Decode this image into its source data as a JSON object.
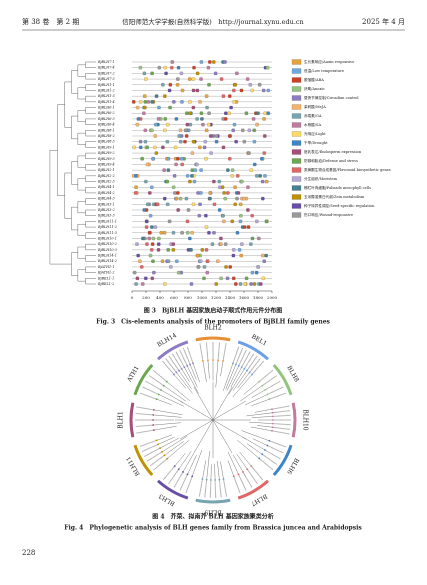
{
  "header": {
    "volume": "第 38 卷　第 2 期",
    "journal": "信阳师范大学学报(自然科学版)　http://journal.xynu.edu.cn",
    "date": "2025 年 4 月"
  },
  "figure3": {
    "genes": [
      "BjBLH7-1",
      "BjBLH7-4",
      "BjBLH7-2",
      "BjBLH7-3",
      "BjBLH1-1",
      "BjBLH1-2",
      "BjBLH1-3",
      "BjBLH1-4",
      "BjBLH6-1",
      "BjBLH6-2",
      "BjBLH6-3",
      "BjBLH6-4",
      "BjBLH8-1",
      "BjBLH8-2",
      "BjBLH8-3",
      "BjBLH9-1",
      "BjBLH9-2",
      "BjBLH9-3",
      "BjBLH9-4",
      "BjBLH2-1",
      "BjBLH2-2",
      "BjBLH2-3",
      "BjBLH4-1",
      "BjBLH4-2",
      "BjBLH4-3",
      "BjBLH3-1",
      "BjBLH3-2",
      "BjBLH3-3",
      "BjBLH11-1",
      "BjBLH11-2",
      "BjBLH11-3",
      "BjBLH10-1",
      "BjBLH10-2",
      "BjBLH10-3",
      "BjBLH14-1",
      "BjBLH14-2",
      "BjATH1-1",
      "BjATH1-2",
      "BjBEL1-1",
      "BjBEL1-2"
    ],
    "axis_ticks": [
      "0",
      "200",
      "400",
      "600",
      "800",
      "1000",
      "1200",
      "1400",
      "1600",
      "1800",
      "2000"
    ],
    "legend": [
      {
        "text": "生长素响应/Auxin responsive",
        "color": "#e8a23a"
      },
      {
        "text": "低温/Low temperature",
        "color": "#6fa8dc"
      },
      {
        "text": "脱落酸/ABA",
        "color": "#cc4125"
      },
      {
        "text": "厌氧/Anoxic",
        "color": "#93c47d"
      },
      {
        "text": "昼夜节律控制/Circadian control",
        "color": "#8e7cc3"
      },
      {
        "text": "茉莉酸/MeJA",
        "color": "#f6b26b"
      },
      {
        "text": "赤霉素/GA",
        "color": "#76a5af"
      },
      {
        "text": "水杨酸/SA",
        "color": "#c27ba0"
      },
      {
        "text": "光响应/Light",
        "color": "#ffd966"
      },
      {
        "text": "干旱/Drought",
        "color": "#3d85c6"
      },
      {
        "text": "胚乳表达/Endosperm expression",
        "color": "#a64d79"
      },
      {
        "text": "防御和胁迫/Defense and stress",
        "color": "#6aa84f"
      },
      {
        "text": "类黄酮生物合成基因/Flavonoid biosynthetic genes",
        "color": "#e06666"
      },
      {
        "text": "分生组织/Meristem",
        "color": "#b4a7d6"
      },
      {
        "text": "栅栏叶肉细胞/Palisade mesophyll cells",
        "color": "#45818e"
      },
      {
        "text": "玉米醇溶蛋白代谢/Zein metabolism",
        "color": "#bf9000"
      },
      {
        "text": "种子特异性调控/Seed-specific regulation",
        "color": "#674ea7"
      },
      {
        "text": "伤口响应/Wound-responsive",
        "color": "#999999"
      }
    ],
    "caption_cn": "图 3　BjBLH 基因家族启动子顺式作用元件分布图",
    "caption_en": "Fig. 3　Cis-elements analysis of the promoters of BjBLH family genes"
  },
  "figure4": {
    "groups": [
      {
        "label": "BLH14",
        "color": "#8e7cc3"
      },
      {
        "label": "BLH2",
        "color": "#e69138"
      },
      {
        "label": "BEL1",
        "color": "#6d9eeb"
      },
      {
        "label": "BLH8",
        "color": "#93c47d"
      },
      {
        "label": "BLH10",
        "color": "#c27ba0"
      },
      {
        "label": "BLH6",
        "color": "#3d85c6"
      },
      {
        "label": "BLH7",
        "color": "#e06666"
      },
      {
        "label": "BLH9",
        "color": "#76a5af"
      },
      {
        "label": "BLH3",
        "color": "#674ea7"
      },
      {
        "label": "BLH11",
        "color": "#bf9000"
      },
      {
        "label": "BLH1",
        "color": "#a64d79"
      },
      {
        "label": "ATH1",
        "color": "#6aa84f"
      }
    ],
    "caption_cn": "图 4　芥菜、拟南芥 BLH 基因家族聚类分析",
    "caption_en": "Fig. 4　Phylogenetic analysis of BLH genes family from Brassica juncea and Arabidopsis"
  },
  "page_number": "228"
}
